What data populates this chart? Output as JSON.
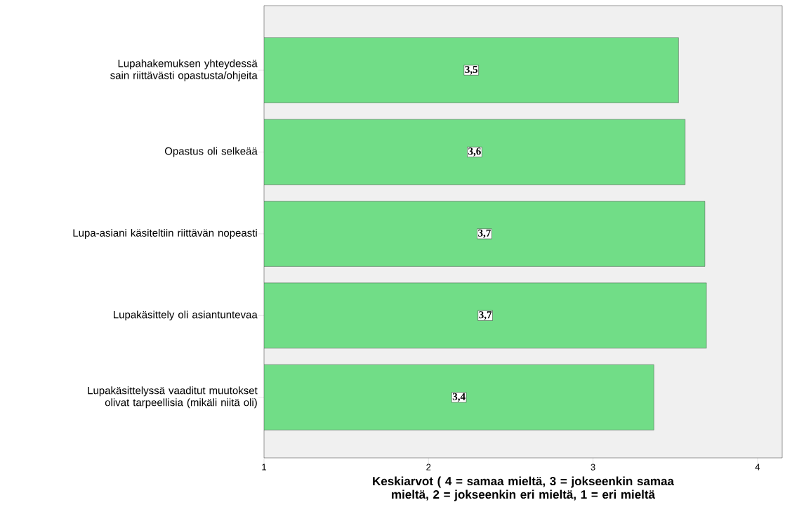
{
  "chart_data": {
    "type": "bar",
    "orientation": "horizontal",
    "categories": [
      "Lupahakemuksen yhteydessä sain riittävästi opastusta/ohjeita",
      "Opastus oli selkeää",
      "Lupa-asiani käsiteltiin riittävän nopeasti",
      "Lupakäsittely oli asiantuntevaa",
      "Lupakäsittelyssä vaaditut muutokset olivat tarpeellisia (mikäli niitä oli)"
    ],
    "values": [
      3.52,
      3.56,
      3.68,
      3.69,
      3.37
    ],
    "value_labels": [
      "3,5",
      "3,6",
      "3,7",
      "3,7",
      "3,4"
    ],
    "color": "#71dd87",
    "xlim": [
      1,
      4.15
    ],
    "xticks": [
      1,
      2,
      3,
      4
    ],
    "xlabel": "Keskiarvot ( 4 = samaa mieltä, 3 = jokseenkin samaa mieltä, 2 = jokseenkin eri mieltä, 1 = eri mieltä",
    "grid": false
  }
}
